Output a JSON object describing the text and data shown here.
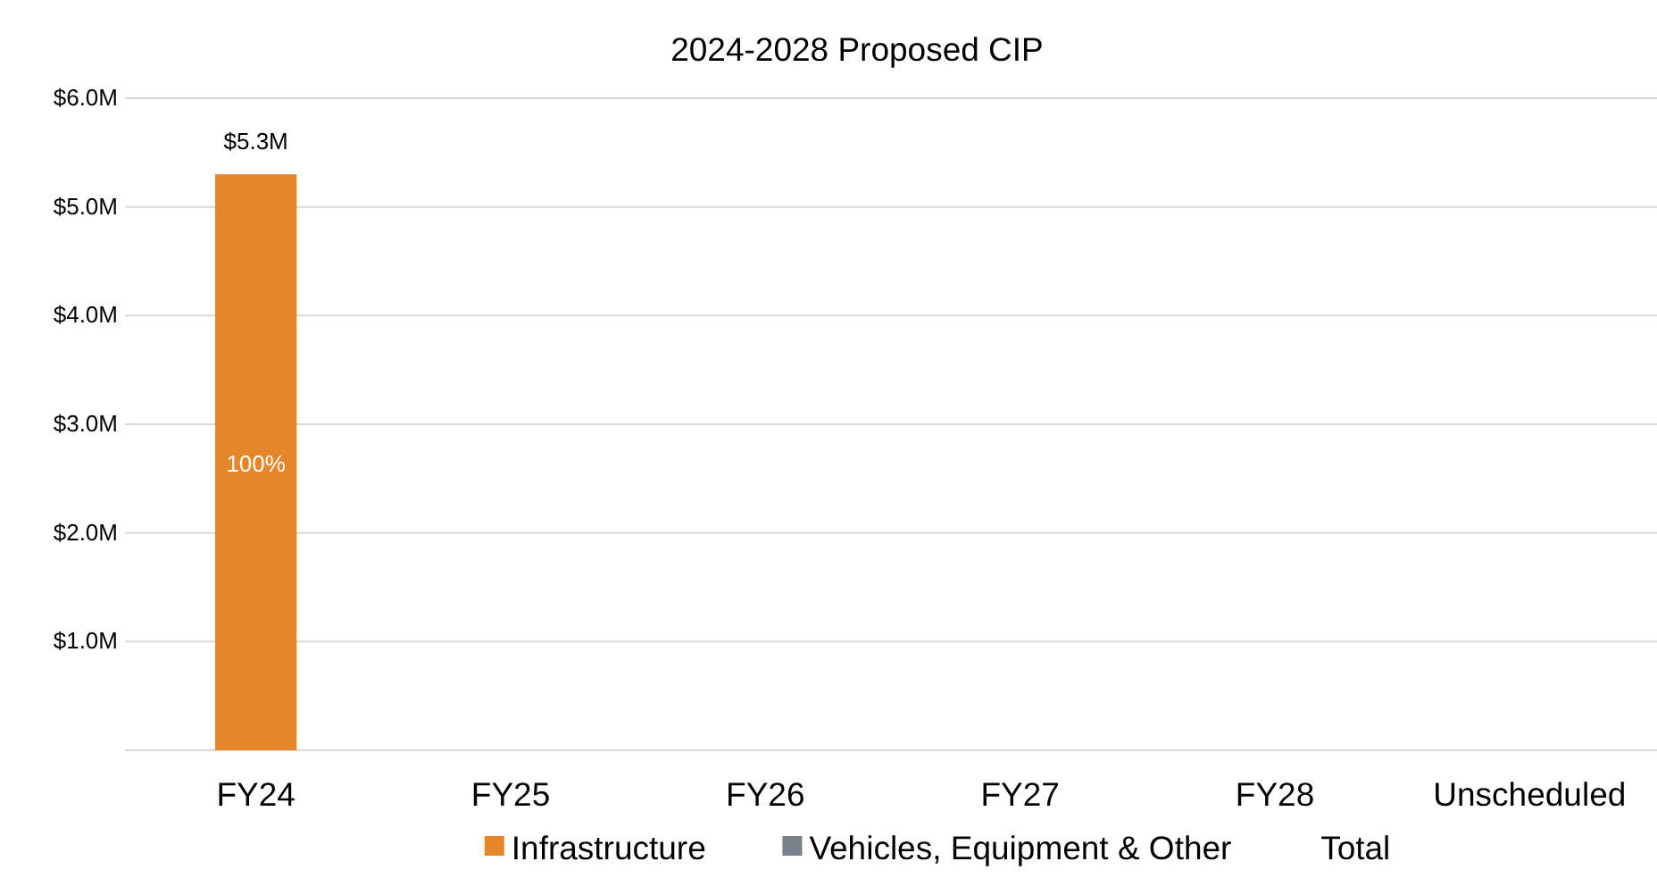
{
  "chart_data": {
    "type": "bar",
    "title": "2024-2028 Proposed CIP",
    "stacked": true,
    "categories": [
      "FY24",
      "FY25",
      "FY26",
      "FY27",
      "FY28",
      "Unscheduled"
    ],
    "series": [
      {
        "name": "Infrastructure",
        "color": "#e6862a",
        "values": [
          5.3,
          0,
          0,
          0,
          0,
          0
        ]
      },
      {
        "name": "Vehicles, Equipment & Other",
        "color": "#77828a",
        "values": [
          0,
          0,
          0,
          0,
          0,
          0
        ]
      }
    ],
    "totals": [
      "$5.3M",
      null,
      null,
      null,
      null,
      null
    ],
    "annotations": [
      "100%",
      "Total"
    ],
    "ylim": [
      0,
      6
    ],
    "yticks": [
      {
        "value": 0,
        "label": null
      },
      {
        "value": 1,
        "label": "$1.0M"
      },
      {
        "value": 2,
        "label": "$2.0M"
      },
      {
        "value": 3,
        "label": "$3.0M"
      },
      {
        "value": 4,
        "label": "$4.0M"
      },
      {
        "value": 5,
        "label": "$5.0M"
      },
      {
        "value": 6,
        "label": "$6.0M"
      }
    ],
    "grid": "y",
    "legend": "bottom"
  }
}
